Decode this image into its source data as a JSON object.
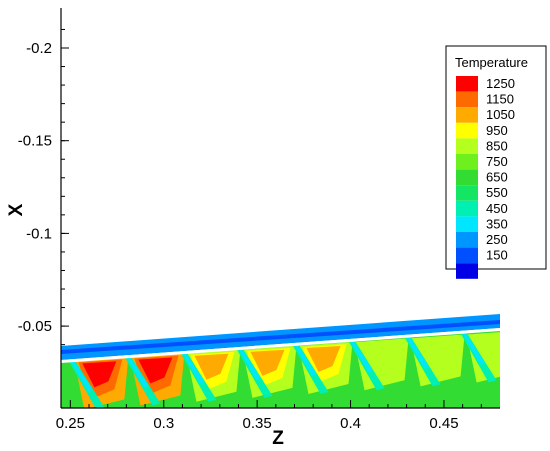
{
  "chart_data": {
    "type": "heatmap",
    "title": "",
    "xlabel": "Z",
    "ylabel": "X",
    "xlim": [
      0.245,
      0.48
    ],
    "ylim": [
      -0.03,
      -0.22
    ],
    "x_ticks": [
      "0.25",
      "0.3",
      "0.35",
      "0.4",
      "0.45"
    ],
    "x_tick_values": [
      0.25,
      0.3,
      0.35,
      0.4,
      0.45
    ],
    "y_ticks": [
      "-0.2",
      "-0.15",
      "-0.1",
      "-0.05"
    ],
    "y_tick_values": [
      -0.2,
      -0.15,
      -0.1,
      -0.05
    ],
    "legend": {
      "title": "Temperature",
      "placement": "right",
      "levels": [
        {
          "value": "1250",
          "color": "#ff0000"
        },
        {
          "value": "1150",
          "color": "#ff6a00"
        },
        {
          "value": "1050",
          "color": "#ffaa00"
        },
        {
          "value": "950",
          "color": "#ffff00"
        },
        {
          "value": "850",
          "color": "#b4ff1e"
        },
        {
          "value": "750",
          "color": "#6ef01e"
        },
        {
          "value": "650",
          "color": "#32dc32"
        },
        {
          "value": "550",
          "color": "#14e664"
        },
        {
          "value": "450",
          "color": "#00f0b4"
        },
        {
          "value": "350",
          "color": "#00e6ff"
        },
        {
          "value": "250",
          "color": "#0096ff"
        },
        {
          "value": "150",
          "color": "#0050ff"
        },
        {
          "value": "",
          "color": "#0000e6"
        }
      ]
    },
    "cooling_holes_z": [
      0.25,
      0.28,
      0.31,
      0.34,
      0.37,
      0.4,
      0.43,
      0.46
    ]
  }
}
